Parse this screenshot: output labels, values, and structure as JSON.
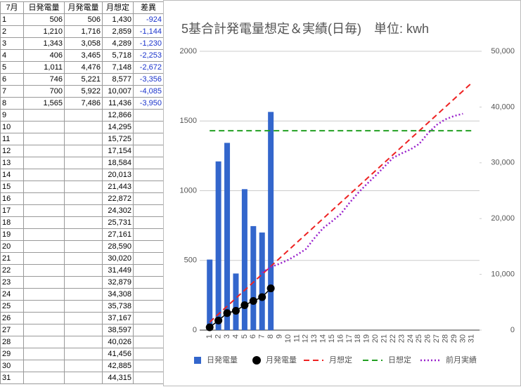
{
  "table": {
    "header": [
      "7月",
      "日発電量",
      "月発電量",
      "月想定",
      "差異"
    ],
    "rows": [
      {
        "day": "1",
        "daily": "506",
        "monthly": "506",
        "plan": "1,430",
        "diff": "-924"
      },
      {
        "day": "2",
        "daily": "1,210",
        "monthly": "1,716",
        "plan": "2,859",
        "diff": "-1,144"
      },
      {
        "day": "3",
        "daily": "1,343",
        "monthly": "3,058",
        "plan": "4,289",
        "diff": "-1,230"
      },
      {
        "day": "4",
        "daily": "406",
        "monthly": "3,465",
        "plan": "5,718",
        "diff": "-2,253"
      },
      {
        "day": "5",
        "daily": "1,011",
        "monthly": "4,476",
        "plan": "7,148",
        "diff": "-2,672"
      },
      {
        "day": "6",
        "daily": "746",
        "monthly": "5,221",
        "plan": "8,577",
        "diff": "-3,356"
      },
      {
        "day": "7",
        "daily": "700",
        "monthly": "5,922",
        "plan": "10,007",
        "diff": "-4,085"
      },
      {
        "day": "8",
        "daily": "1,565",
        "monthly": "7,486",
        "plan": "11,436",
        "diff": "-3,950"
      },
      {
        "day": "9",
        "plan": "12,866"
      },
      {
        "day": "10",
        "plan": "14,295"
      },
      {
        "day": "11",
        "plan": "15,725"
      },
      {
        "day": "12",
        "plan": "17,154"
      },
      {
        "day": "13",
        "plan": "18,584"
      },
      {
        "day": "14",
        "plan": "20,013"
      },
      {
        "day": "15",
        "plan": "21,443"
      },
      {
        "day": "16",
        "plan": "22,872"
      },
      {
        "day": "17",
        "plan": "24,302"
      },
      {
        "day": "18",
        "plan": "25,731"
      },
      {
        "day": "19",
        "plan": "27,161"
      },
      {
        "day": "20",
        "plan": "28,590"
      },
      {
        "day": "21",
        "plan": "30,020"
      },
      {
        "day": "22",
        "plan": "31,449"
      },
      {
        "day": "23",
        "plan": "32,879"
      },
      {
        "day": "24",
        "plan": "34,308"
      },
      {
        "day": "25",
        "plan": "35,738"
      },
      {
        "day": "26",
        "plan": "37,167"
      },
      {
        "day": "27",
        "plan": "38,597"
      },
      {
        "day": "28",
        "plan": "40,026"
      },
      {
        "day": "29",
        "plan": "41,456"
      },
      {
        "day": "30",
        "plan": "42,885"
      },
      {
        "day": "31",
        "plan": "44,315"
      }
    ]
  },
  "chart_data": {
    "type": "combo",
    "title": "5基合計発電量想定＆実績(日毎)　単位: kwh",
    "categories": [
      "1",
      "2",
      "3",
      "4",
      "5",
      "6",
      "7",
      "8",
      "9",
      "10",
      "11",
      "12",
      "13",
      "14",
      "15",
      "16",
      "17",
      "18",
      "19",
      "20",
      "21",
      "22",
      "23",
      "24",
      "25",
      "26",
      "27",
      "28",
      "29",
      "30",
      "31"
    ],
    "ylim": [
      0,
      2000
    ],
    "yticks": [
      0,
      500,
      1000,
      1500,
      2000
    ],
    "y2lim": [
      0,
      50000
    ],
    "y2ticks": [
      0,
      {
        "value": 10000,
        "label": "10,000"
      },
      {
        "value": 20000,
        "label": "20,000"
      },
      {
        "value": 30000,
        "label": "30,000"
      },
      {
        "value": 40000,
        "label": "40,000"
      },
      {
        "value": 50000,
        "label": "50,000"
      }
    ],
    "grid": true,
    "legend": "bottom",
    "series": [
      {
        "name": "日発電量",
        "color": "#3366cc",
        "mark": "bar",
        "values": [
          506,
          1210,
          1343,
          406,
          1011,
          746,
          700,
          1565,
          null,
          null,
          null,
          null,
          null,
          null,
          null,
          null,
          null,
          null,
          null,
          null,
          null,
          null,
          null,
          null,
          null,
          null,
          null,
          null,
          null,
          null,
          null
        ]
      },
      {
        "name": "月発電量",
        "color": "#000000",
        "mark": "line-dots",
        "axis": "y2",
        "values": [
          506,
          1716,
          3058,
          3465,
          4476,
          5221,
          5922,
          7486,
          null,
          null,
          null,
          null,
          null,
          null,
          null,
          null,
          null,
          null,
          null,
          null,
          null,
          null,
          null,
          null,
          null,
          null,
          null,
          null,
          null,
          null,
          null
        ]
      },
      {
        "name": "月想定",
        "color": "#ee2222",
        "mark": "dashed",
        "axis": "y2",
        "values": [
          1430,
          2859,
          4289,
          5718,
          7148,
          8577,
          10007,
          11436,
          12866,
          14295,
          15725,
          17154,
          18584,
          20013,
          21443,
          22872,
          24302,
          25731,
          27161,
          28590,
          30020,
          31449,
          32879,
          34308,
          35738,
          37167,
          38597,
          40026,
          41456,
          42885,
          44315
        ]
      },
      {
        "name": "日想定",
        "color": "#22a022",
        "mark": "dashed",
        "values": [
          1430,
          1430,
          1430,
          1430,
          1430,
          1430,
          1430,
          1430,
          1430,
          1430,
          1430,
          1430,
          1430,
          1430,
          1430,
          1430,
          1430,
          1430,
          1430,
          1430,
          1430,
          1430,
          1430,
          1430,
          1430,
          1430,
          1430,
          1430,
          1430,
          1430,
          1430
        ]
      },
      {
        "name": "前月実績",
        "color": "#9922cc",
        "mark": "dotted",
        "axis": "y2",
        "values": [
          null,
          null,
          null,
          null,
          null,
          null,
          10300,
          11300,
          11900,
          12600,
          13500,
          14500,
          16500,
          18300,
          19500,
          20800,
          22800,
          24600,
          26200,
          27700,
          29300,
          30900,
          31700,
          32400,
          33400,
          35300,
          36800,
          37800,
          38400,
          38800,
          null
        ]
      }
    ]
  }
}
